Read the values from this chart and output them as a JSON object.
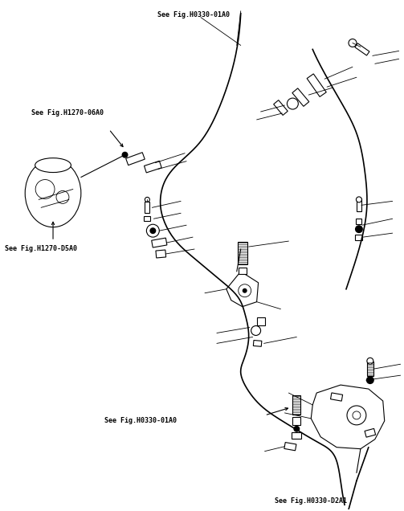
{
  "bg_color": "#ffffff",
  "lc": "#000000",
  "fig_w": 5.03,
  "fig_h": 6.36,
  "dpi": 100,
  "labels": {
    "top_center": [
      "See Fig.H0330-01A0",
      0.39,
      0.978
    ],
    "top_left": [
      "See Fig.H1270-06A0",
      0.075,
      0.845
    ],
    "mid_left": [
      "See Fig.H1270-D5A0",
      0.01,
      0.66
    ],
    "bot_center": [
      "See Fig.H0330-01A0",
      0.255,
      0.172
    ],
    "bot_right": [
      "See Fig.H0330-D2A1",
      0.68,
      0.022
    ]
  }
}
